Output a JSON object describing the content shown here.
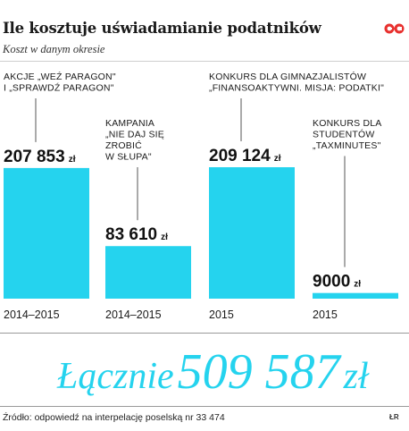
{
  "header": {
    "title": "Ile kosztuje uświadamianie podatników",
    "subtitle": "Koszt w danym okresie",
    "logo_text": "©P"
  },
  "chart_data": {
    "type": "bar",
    "categories": [
      "2014–2015",
      "2014–2015",
      "2015",
      "2015"
    ],
    "values": [
      207853,
      83610,
      209124,
      9000
    ],
    "value_labels": [
      "207 853",
      "83 610",
      "209 124",
      "9000"
    ],
    "unit": "zł",
    "annotations": [
      [
        "AKCJE „WEŹ PARAGON\"",
        "I „SPRAWDŹ PARAGON\""
      ],
      [
        "KAMPANIA",
        "„NIE DAJ SIĘ",
        "ZROBIĆ",
        "W SŁUPA\""
      ],
      [
        "KONKURS DLA GIMNAZJALISTÓW",
        "„FINANSOAKTYWNI. MISJA: PODATKI\""
      ],
      [
        "KONKURS DLA",
        "STUDENTÓW",
        "„TAXMINUTES\""
      ]
    ],
    "bar_color": "#25d3ee",
    "ylim": [
      0,
      209124
    ],
    "grid": false
  },
  "summary": {
    "label": "Łącznie",
    "value": "509 587",
    "unit": "zł"
  },
  "footer": {
    "source": "Źródło: odpowiedź na interpelację poselską nr 33 474",
    "author": "ŁR"
  },
  "colors": {
    "accent": "#25d3ee",
    "logo": "#e8312f"
  }
}
